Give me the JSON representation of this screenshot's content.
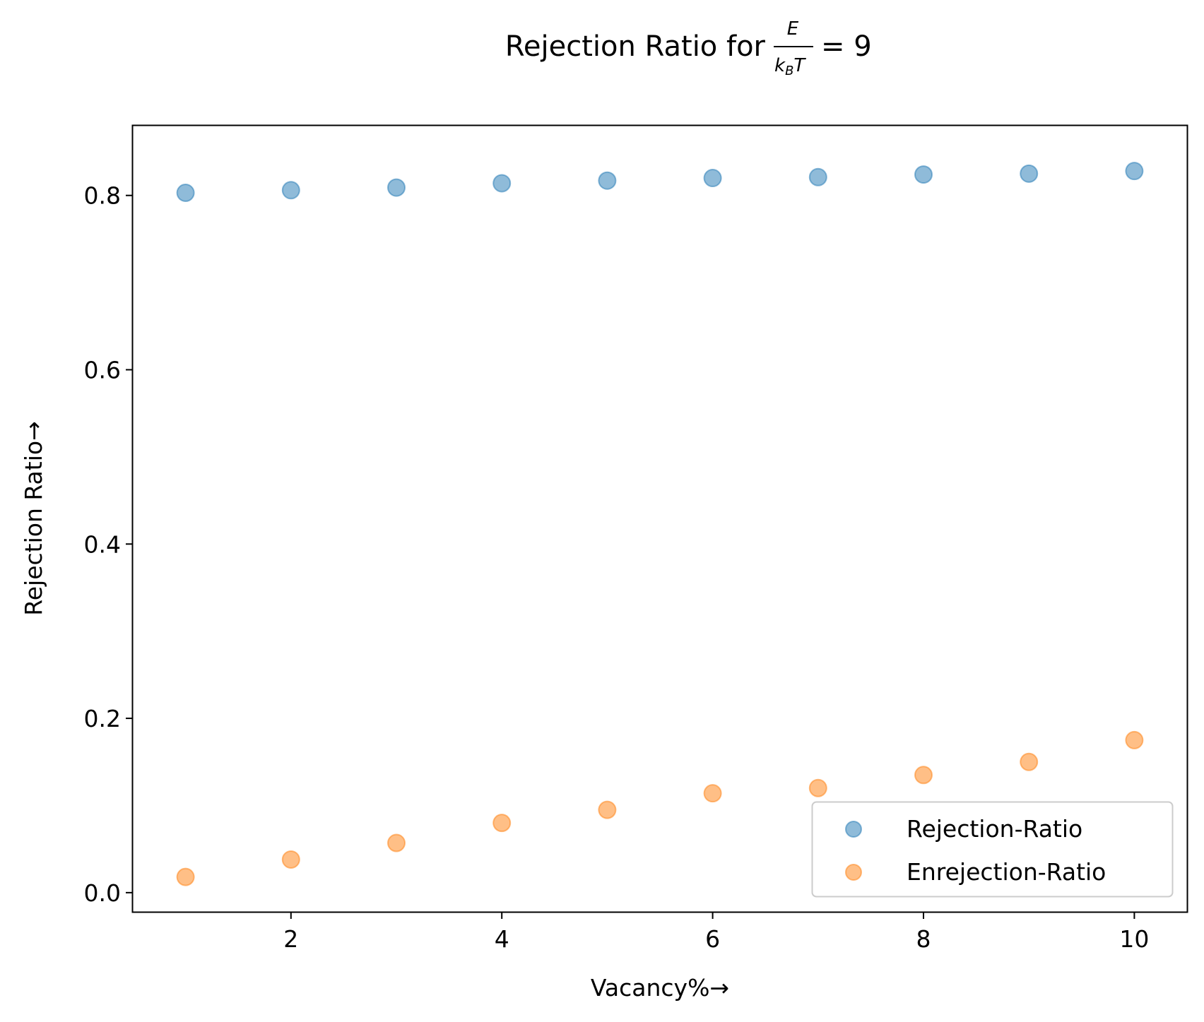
{
  "chart_data": {
    "type": "scatter",
    "title": {
      "prefix": "Rejection Ratio for",
      "fraction_numerator": "E",
      "fraction_denominator_main": "k",
      "fraction_denominator_sub": "B",
      "fraction_denominator_end": "T",
      "suffix": "= 9"
    },
    "xlabel": "Vacancy%→",
    "ylabel": "Rejection Ratio→",
    "xlim": [
      0.5,
      10.5
    ],
    "ylim": [
      -0.022,
      0.88
    ],
    "xticks": [
      2,
      4,
      6,
      8,
      10
    ],
    "xtick_labels": [
      "2",
      "4",
      "6",
      "8",
      "10"
    ],
    "yticks": [
      0.0,
      0.2,
      0.4,
      0.6,
      0.8
    ],
    "ytick_labels": [
      "0.0",
      "0.2",
      "0.4",
      "0.6",
      "0.8"
    ],
    "grid": false,
    "legend_position": "lower-right",
    "series": [
      {
        "name": "Rejection-Ratio",
        "color": "#1f77b4",
        "x": [
          1,
          2,
          3,
          4,
          5,
          6,
          7,
          8,
          9,
          10
        ],
        "y": [
          0.803,
          0.806,
          0.809,
          0.814,
          0.817,
          0.82,
          0.821,
          0.824,
          0.825,
          0.828
        ]
      },
      {
        "name": "Enrejection-Ratio",
        "color": "#ff7f0e",
        "x": [
          1,
          2,
          3,
          4,
          5,
          6,
          7,
          8,
          9,
          10
        ],
        "y": [
          0.018,
          0.038,
          0.057,
          0.08,
          0.095,
          0.114,
          0.12,
          0.135,
          0.15,
          0.175
        ]
      }
    ]
  }
}
